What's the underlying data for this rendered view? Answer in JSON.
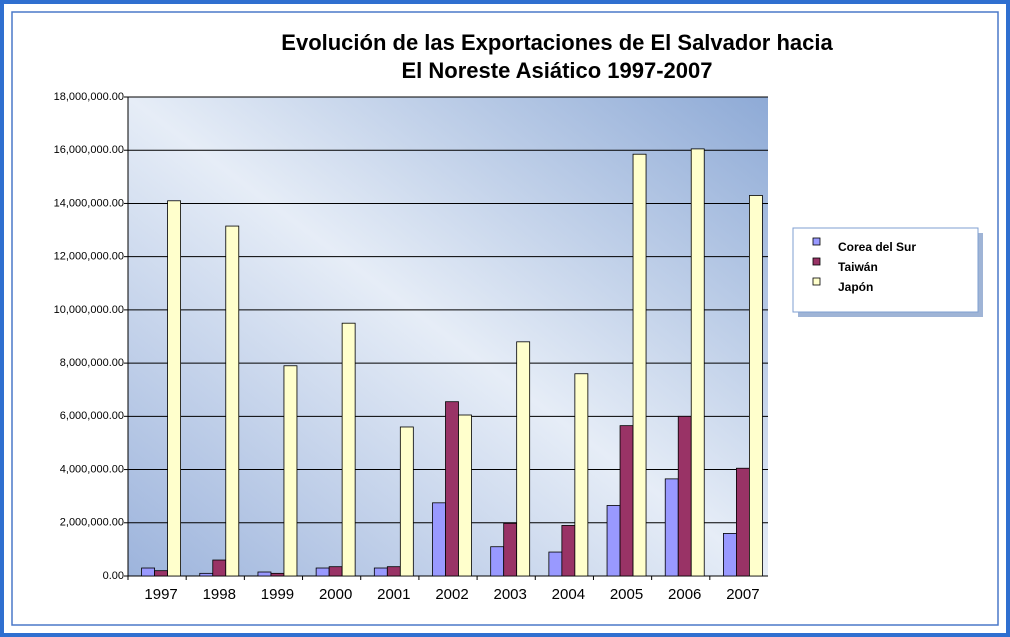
{
  "chart_data": {
    "type": "bar",
    "title": [
      "Evolución de las Exportaciones de El Salvador hacia",
      "El Noreste Asiático 1997-2007"
    ],
    "categories": [
      "1997",
      "1998",
      "1999",
      "2000",
      "2001",
      "2002",
      "2003",
      "2004",
      "2005",
      "2006",
      "2007"
    ],
    "series": [
      {
        "name": "Corea del Sur",
        "color": "#9999ff",
        "values": [
          300000,
          100000,
          150000,
          300000,
          300000,
          2750000,
          1100000,
          900000,
          2650000,
          3650000,
          1600000
        ]
      },
      {
        "name": "Taiwán",
        "color": "#993366",
        "values": [
          200000,
          600000,
          100000,
          350000,
          350000,
          6550000,
          1980000,
          1900000,
          5650000,
          6000000,
          4050000
        ]
      },
      {
        "name": "Japón",
        "color": "#ffffcc",
        "values": [
          14100000,
          13150000,
          7900000,
          9500000,
          5600000,
          6050000,
          8800000,
          7600000,
          15850000,
          16050000,
          14300000
        ]
      }
    ],
    "ylim": [
      0,
      18000000
    ],
    "yticks": [
      {
        "value": 0,
        "label": "0.00"
      },
      {
        "value": 2000000,
        "label": "2,000,000.00"
      },
      {
        "value": 4000000,
        "label": "4,000,000.00"
      },
      {
        "value": 6000000,
        "label": "6,000,000.00"
      },
      {
        "value": 8000000,
        "label": "8,000,000.00"
      },
      {
        "value": 10000000,
        "label": "10,000,000.00"
      },
      {
        "value": 12000000,
        "label": "12,000,000.00"
      },
      {
        "value": 14000000,
        "label": "14,000,000.00"
      },
      {
        "value": 16000000,
        "label": "16,000,000.00"
      },
      {
        "value": 18000000,
        "label": "18,000,000.00"
      }
    ],
    "grid": true,
    "legend": "right"
  }
}
